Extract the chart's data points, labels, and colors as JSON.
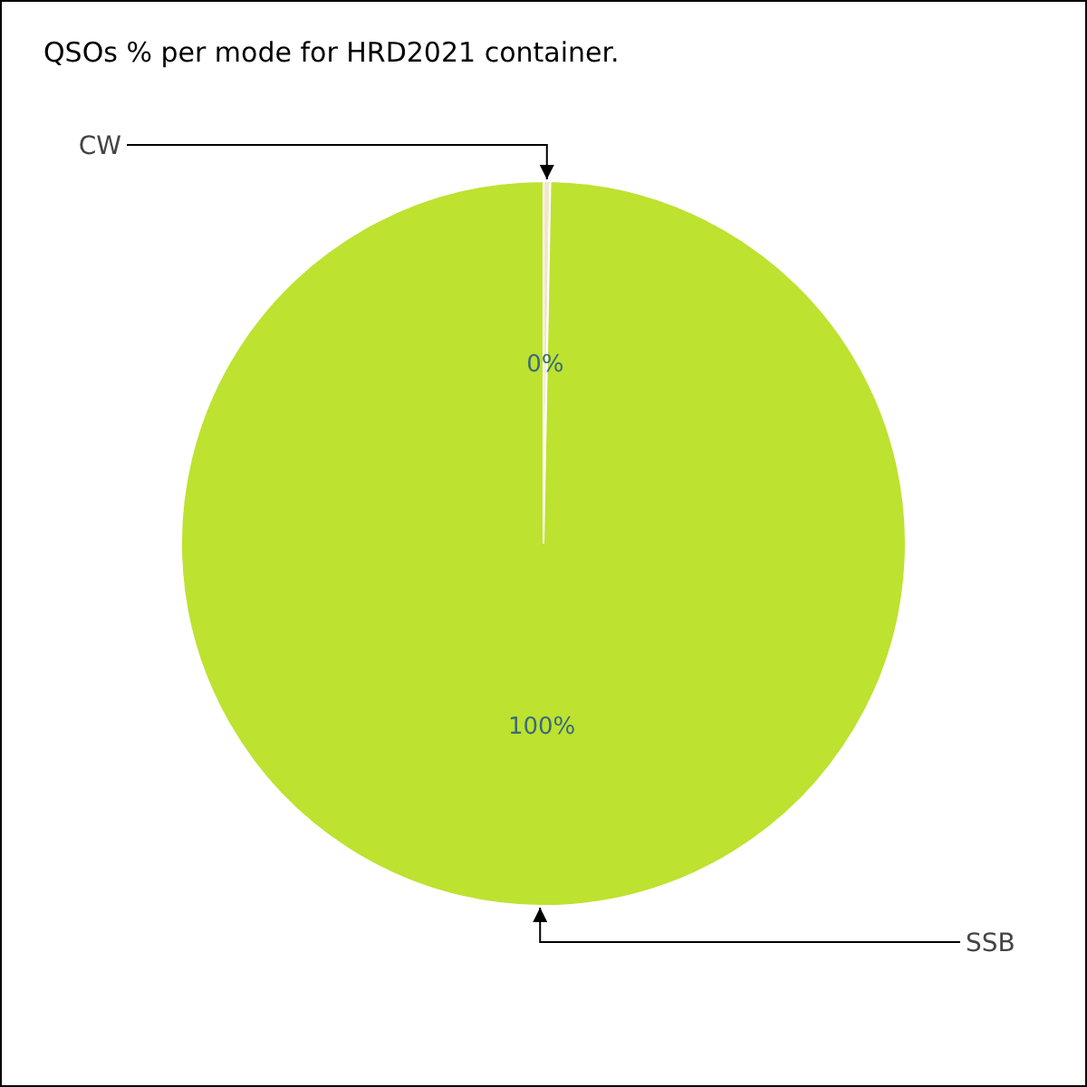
{
  "chart_data": {
    "type": "pie",
    "title": "QSOs % per mode for HRD2021 container.",
    "categories": [
      "CW",
      "SSB"
    ],
    "values": [
      0.3,
      99.7
    ],
    "colors": [
      "#f3e6cc",
      "#bde22f"
    ],
    "value_labels": [
      "0%",
      "100%"
    ]
  }
}
